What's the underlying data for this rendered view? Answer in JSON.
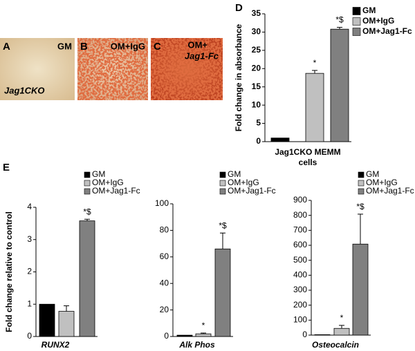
{
  "images": [
    {
      "letter": "A",
      "label": "GM",
      "sublabel": "Jag1CKO"
    },
    {
      "letter": "B",
      "label": "OM+IgG"
    },
    {
      "letter": "C",
      "label": "OM+",
      "sublabel": "Jag1-Fc"
    }
  ],
  "panel_letters": [
    "D",
    "E"
  ],
  "chart_data": [
    {
      "type": "bar",
      "ylabel": "Fold change in absorbance",
      "xlabel": [
        "Jag1CKO MEMM",
        "cells"
      ],
      "ylim": [
        0,
        35
      ],
      "yticks": [
        0,
        5,
        10,
        15,
        20,
        25,
        30,
        35
      ],
      "series": [
        {
          "name": "GM",
          "color": "#000000",
          "values": [
            1
          ]
        },
        {
          "name": "OM+IgG",
          "color": "#c0c0c0",
          "values": [
            18.7
          ],
          "errors": [
            0.8
          ],
          "annotation": "*"
        },
        {
          "name": "OM+Jag1-Fc",
          "color": "#808080",
          "values": [
            30.8
          ],
          "errors": [
            0.5
          ],
          "annotation": "*$"
        }
      ]
    },
    {
      "type": "bar",
      "ylabel": "Fold change relative to control",
      "xlabel": "RUNX2",
      "ylim": [
        0,
        4
      ],
      "yticks": [
        0,
        1,
        2,
        3,
        4
      ],
      "series": [
        {
          "name": "GM",
          "color": "#000000",
          "values": [
            1
          ]
        },
        {
          "name": "OM+IgG",
          "color": "#c0c0c0",
          "values": [
            0.78
          ],
          "errors": [
            0.17
          ]
        },
        {
          "name": "OM+Jag1-Fc",
          "color": "#808080",
          "values": [
            3.58
          ],
          "errors": [
            0.05
          ],
          "annotation": "*$"
        }
      ]
    },
    {
      "type": "bar",
      "xlabel": "Alk Phos",
      "ylim": [
        0,
        100
      ],
      "yticks": [
        0,
        20,
        40,
        60,
        80,
        100
      ],
      "series": [
        {
          "name": "GM",
          "color": "#000000",
          "values": [
            1
          ]
        },
        {
          "name": "OM+IgG",
          "color": "#c0c0c0",
          "values": [
            2
          ],
          "errors": [
            0.6
          ],
          "annotation": "*"
        },
        {
          "name": "OM+Jag1-Fc",
          "color": "#808080",
          "values": [
            66
          ],
          "errors": [
            12
          ],
          "annotation": "*$"
        }
      ]
    },
    {
      "type": "bar",
      "xlabel": "Osteocalcin",
      "ylim": [
        0,
        900
      ],
      "yticks": [
        0,
        100,
        200,
        300,
        400,
        500,
        600,
        700,
        800,
        900
      ],
      "series": [
        {
          "name": "GM",
          "color": "#000000",
          "values": [
            3
          ]
        },
        {
          "name": "OM+IgG",
          "color": "#c0c0c0",
          "values": [
            45
          ],
          "errors": [
            20
          ],
          "annotation": "*"
        },
        {
          "name": "OM+Jag1-Fc",
          "color": "#808080",
          "values": [
            608
          ],
          "errors": [
            200
          ],
          "annotation": "*$"
        }
      ]
    }
  ]
}
